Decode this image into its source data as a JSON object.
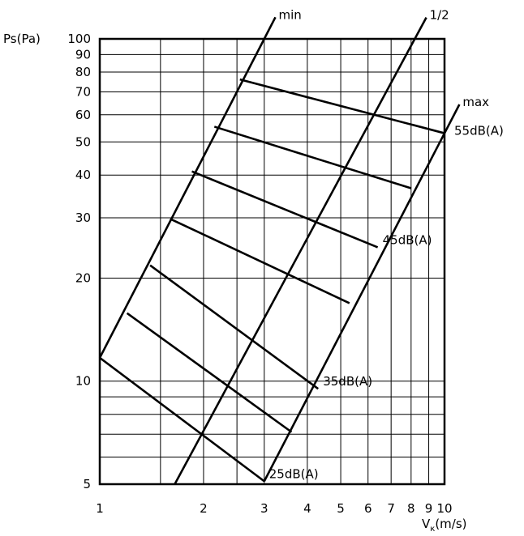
{
  "chart_data": {
    "type": "line",
    "title": "",
    "xlabel": "V",
    "xlabel_sub": "к",
    "xlabel_unit": "(m/s)",
    "ylabel": "Ps(Pa)",
    "xscale": "log",
    "yscale": "log",
    "xlim": [
      1,
      10
    ],
    "ylim": [
      5,
      100
    ],
    "grid": true,
    "x_ticks": [
      1,
      2,
      3,
      4,
      5,
      6,
      7,
      8,
      9,
      10
    ],
    "y_ticks": [
      5,
      10,
      20,
      30,
      40,
      50,
      60,
      70,
      80,
      90,
      100
    ],
    "x_minor_grid": [
      1.5,
      2.5
    ],
    "y_minor_grid": [
      6,
      7,
      8,
      9
    ],
    "series": [
      {
        "name": "min",
        "role": "boundary",
        "x": [
          1.0,
          3.0
        ],
        "y": [
          11.7,
          100.0
        ]
      },
      {
        "name": "1/2",
        "role": "boundary",
        "x": [
          1.65,
          8.2
        ],
        "y": [
          5.0,
          100.0
        ]
      },
      {
        "name": "max",
        "role": "boundary",
        "x": [
          3.0,
          10.0
        ],
        "y": [
          5.1,
          53.0
        ]
      },
      {
        "name": "25dB(A)",
        "role": "noise",
        "x": [
          1.0,
          3.0
        ],
        "y": [
          11.7,
          5.1
        ]
      },
      {
        "name": "",
        "role": "noise",
        "x": [
          1.2,
          3.6
        ],
        "y": [
          15.8,
          7.1
        ]
      },
      {
        "name": "35dB(A)",
        "role": "noise",
        "x": [
          1.4,
          4.3
        ],
        "y": [
          21.8,
          9.5
        ]
      },
      {
        "name": "",
        "role": "noise",
        "x": [
          1.6,
          5.3
        ],
        "y": [
          29.8,
          16.9
        ]
      },
      {
        "name": "45dB(A)",
        "role": "noise",
        "x": [
          1.85,
          6.4
        ],
        "y": [
          41.0,
          24.6
        ]
      },
      {
        "name": "",
        "role": "noise",
        "x": [
          2.15,
          8.0
        ],
        "y": [
          55.4,
          36.6
        ]
      },
      {
        "name": "55dB(A)",
        "role": "noise",
        "x": [
          2.55,
          10.0
        ],
        "y": [
          76.1,
          53.0
        ]
      }
    ],
    "curve_labels": [
      "min",
      "1/2",
      "max"
    ],
    "noise_labels": [
      "25dB(A)",
      "35dB(A)",
      "45dB(A)",
      "55dB(A)"
    ]
  }
}
